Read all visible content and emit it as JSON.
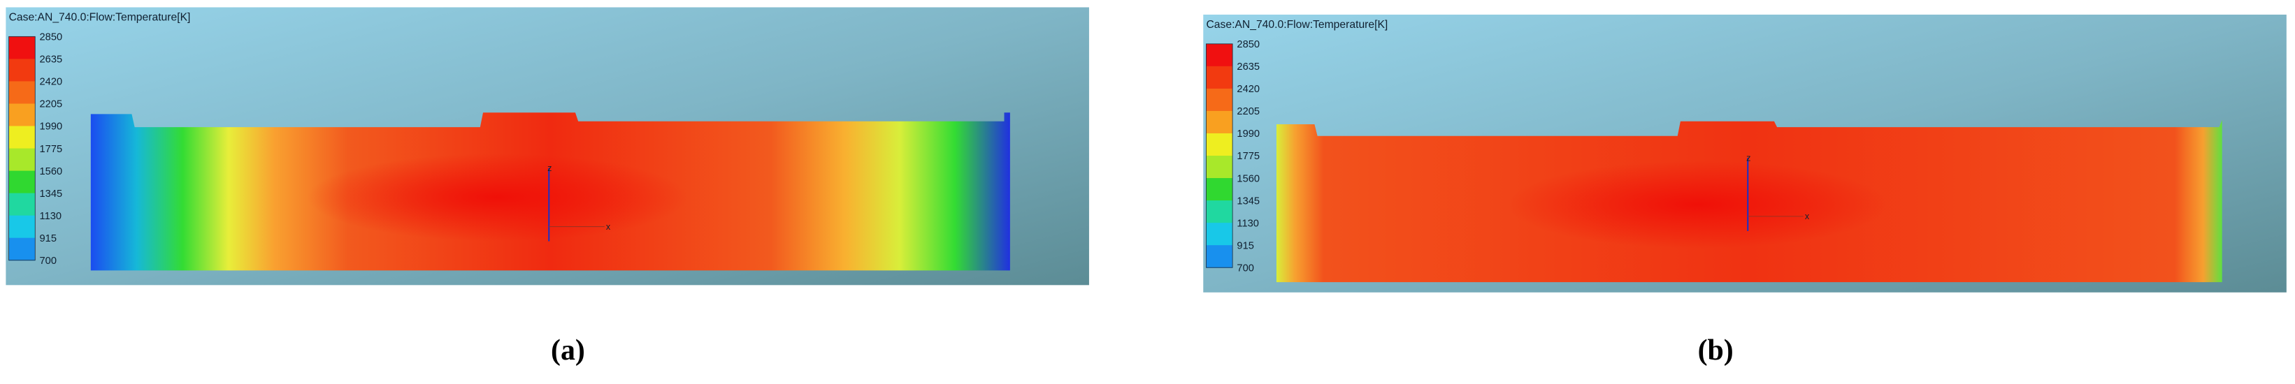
{
  "panels": [
    {
      "title": "Case:AN_740.0:Flow:Temperature[K]",
      "legend": [
        2850,
        2635,
        2420,
        2205,
        1990,
        1775,
        1560,
        1345,
        1130,
        915,
        700
      ],
      "axes": [
        "z",
        "x"
      ],
      "caption": "(a)"
    },
    {
      "title": "Case:AN_740.0:Flow:Temperature[K]",
      "legend": [
        2850,
        2635,
        2420,
        2205,
        1990,
        1775,
        1560,
        1345,
        1130,
        915,
        700
      ],
      "axes": [
        "z",
        "x"
      ],
      "caption": "(b)"
    }
  ]
}
